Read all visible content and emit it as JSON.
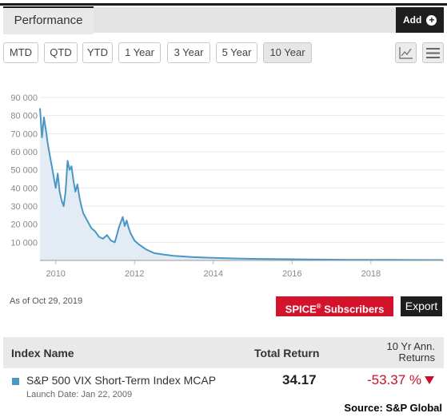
{
  "header": {
    "performance_tab": "Performance",
    "add_label": "Add"
  },
  "time_ranges": [
    "MTD",
    "QTD",
    "YTD",
    "1 Year",
    "3 Year",
    "5 Year",
    "10 Year"
  ],
  "active_range": "10 Year",
  "icons": {
    "chart_toggle": "line-chart-icon",
    "menu": "hamburger-menu-icon",
    "add": "plus-circle-icon"
  },
  "chart_data": {
    "type": "area",
    "y_ticks": [
      "90 000",
      "80 000",
      "70 000",
      "60 000",
      "50 000",
      "40 000",
      "30 000",
      "20 000",
      "10 000"
    ],
    "x_ticks": [
      "2010",
      "2012",
      "2014",
      "2016",
      "2018"
    ],
    "ylim": [
      0,
      90000
    ],
    "xlim": [
      2009.6,
      2019.85
    ],
    "grid": true,
    "series": [
      {
        "color": "#4a96c4",
        "x": [
          2009.6,
          2009.65,
          2009.7,
          2009.75,
          2009.8,
          2009.85,
          2009.9,
          2009.95,
          2010.0,
          2010.05,
          2010.1,
          2010.15,
          2010.2,
          2010.25,
          2010.3,
          2010.35,
          2010.4,
          2010.45,
          2010.5,
          2010.55,
          2010.6,
          2010.65,
          2010.7,
          2010.8,
          2010.9,
          2011.0,
          2011.1,
          2011.2,
          2011.3,
          2011.4,
          2011.5,
          2011.55,
          2011.6,
          2011.65,
          2011.7,
          2011.75,
          2011.8,
          2011.85,
          2011.9,
          2012.0,
          2012.1,
          2012.2,
          2012.3,
          2012.4,
          2012.5,
          2012.75,
          2013.0,
          2013.5,
          2014.0,
          2014.5,
          2015.0,
          2015.5,
          2016.0,
          2016.5,
          2017.0,
          2017.5,
          2018.0,
          2018.5,
          2019.0,
          2019.5,
          2019.83
        ],
        "y": [
          84000,
          68000,
          79000,
          72000,
          64000,
          58000,
          52000,
          46000,
          40000,
          48000,
          38000,
          33000,
          30000,
          38000,
          55000,
          50000,
          52000,
          44000,
          38000,
          42000,
          35000,
          30000,
          26000,
          22000,
          18000,
          16000,
          13000,
          12000,
          14000,
          11000,
          10000,
          14000,
          18000,
          21000,
          24000,
          19000,
          22000,
          18000,
          15000,
          11000,
          9000,
          7500,
          6000,
          5000,
          4000,
          3200,
          2500,
          1800,
          1400,
          1100,
          900,
          750,
          650,
          550,
          420,
          360,
          330,
          300,
          260,
          240,
          240
        ]
      }
    ]
  },
  "footer": {
    "as_of_prefix": "As of",
    "as_of_date": "Oct 29, 2019",
    "spice_label": "SPICE",
    "spice_sup": "®",
    "spice_suffix": " Subscribers",
    "export_label": "Export"
  },
  "table": {
    "headers": {
      "name": "Index Name",
      "total": "Total Return",
      "ann_line1": "10 Yr Ann.",
      "ann_line2": "Returns"
    },
    "rows": [
      {
        "name": "S&P 500 VIX Short-Term Index MCAP",
        "launch": "Launch Date: Jan 22, 2009",
        "total_return": "34.17",
        "ann_return": "-53.37 %",
        "marker_color": "#4a96c4"
      }
    ]
  },
  "source": "Source: S&P Global"
}
